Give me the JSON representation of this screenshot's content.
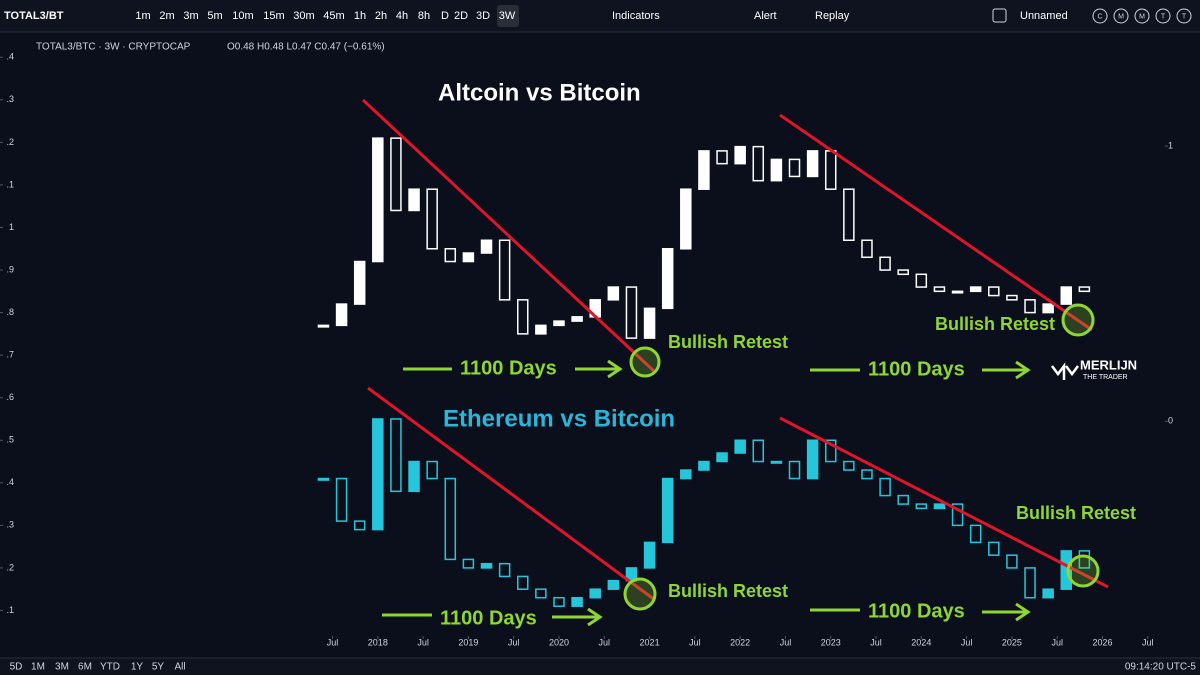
{
  "toolbar": {
    "symbol": "TOTAL3/BT",
    "intervals": [
      "1m",
      "2m",
      "3m",
      "5m",
      "10m",
      "15m",
      "30m",
      "45m",
      "1h",
      "2h",
      "4h",
      "8h",
      "D",
      "2D",
      "3D",
      "3W"
    ],
    "indicators": "Indicators",
    "alert": "Alert",
    "replay": "Replay",
    "layout": "Unnamed",
    "badges": [
      "C",
      "M",
      "M",
      "T",
      "T"
    ]
  },
  "legend": {
    "symbol": "TOTAL3/BTC · 3W · CRYPTOCAP",
    "ohlc": "O0.48 H0.48 L0.47 C0.47 (−0.61%)"
  },
  "watermark": {
    "name": "MERLIJN",
    "tagline": "THE TRADER"
  },
  "footer": {
    "ranges": [
      "5D",
      "1M",
      "3M",
      "6M",
      "YTD",
      "1Y",
      "5Y",
      "All"
    ],
    "time": "09:14:20 UTC-5"
  },
  "chart_data": {
    "type": "candlestick",
    "x": [
      2017.4,
      2017.6,
      2017.8,
      2018.0,
      2018.2,
      2018.4,
      2018.6,
      2018.8,
      2019.0,
      2019.2,
      2019.4,
      2019.6,
      2019.8,
      2020.0,
      2020.2,
      2020.4,
      2020.6,
      2020.8,
      2021.0,
      2021.2,
      2021.4,
      2021.6,
      2021.8,
      2022.0,
      2022.2,
      2022.4,
      2022.6,
      2022.8,
      2023.0,
      2023.2,
      2023.4,
      2023.6,
      2023.8,
      2024.0,
      2024.2,
      2024.4,
      2024.6,
      2024.8,
      2025.0,
      2025.2,
      2025.4,
      2025.6,
      2025.8
    ],
    "xlim": [
      2014.05,
      2026.69
    ],
    "xticks": [
      {
        "value": 2017.5,
        "label": "Jul"
      },
      2018,
      {
        "value": 2018.5,
        "label": "Jul"
      },
      2019,
      {
        "value": 2019.5,
        "label": "Jul"
      },
      2020,
      {
        "value": 2020.5,
        "label": "Jul"
      },
      2021,
      {
        "value": 2021.5,
        "label": "Jul"
      },
      2022,
      {
        "value": 2022.5,
        "label": "Jul"
      },
      2023,
      {
        "value": 2023.5,
        "label": "Jul"
      },
      2024,
      {
        "value": 2024.5,
        "label": "Jul"
      },
      2025,
      {
        "value": 2025.5,
        "label": "Jul"
      },
      2026,
      {
        "value": 2026.5,
        "label": "Jul"
      }
    ],
    "ylim": [
      0.04,
      1.45
    ],
    "yticks": [
      {
        "value": 1.4,
        "label": ".4"
      },
      {
        "value": 1.3,
        "label": ".3"
      },
      {
        "value": 1.2,
        "label": ".2"
      },
      {
        "value": 1.1,
        "label": ".1"
      },
      1,
      {
        "value": 0.9,
        "label": ".9"
      },
      {
        "value": 0.8,
        "label": ".8"
      },
      {
        "value": 0.7,
        "label": ".7"
      },
      {
        "value": 0.6,
        "label": ".6"
      },
      {
        "value": 0.5,
        "label": ".5"
      },
      {
        "value": 0.4,
        "label": ".4"
      },
      {
        "value": 0.3,
        "label": ".3"
      },
      {
        "value": 0.2,
        "label": ".2"
      },
      {
        "value": 0.1,
        "label": ".1"
      }
    ],
    "y2lim": [
      -0.78,
      1.4
    ],
    "y2ticks": [
      1,
      0
    ],
    "series": [
      {
        "color": "#ffffff",
        "values": [
          0.77,
          0.82,
          0.92,
          1.21,
          1.04,
          1.09,
          0.95,
          0.92,
          0.94,
          0.97,
          0.83,
          0.75,
          0.77,
          0.78,
          0.79,
          0.83,
          0.86,
          0.74,
          0.81,
          0.95,
          1.09,
          1.18,
          1.15,
          1.19,
          1.11,
          1.16,
          1.12,
          1.18,
          1.09,
          0.97,
          0.93,
          0.9,
          0.89,
          0.86,
          0.85,
          0.85,
          0.86,
          0.84,
          0.83,
          0.8,
          0.82,
          0.86,
          0.85
        ]
      },
      {
        "color": "#26c6da",
        "values": [
          0.41,
          0.31,
          0.29,
          0.55,
          0.38,
          0.45,
          0.41,
          0.22,
          0.2,
          0.21,
          0.18,
          0.15,
          0.13,
          0.11,
          0.13,
          0.15,
          0.17,
          0.2,
          0.26,
          0.41,
          0.43,
          0.45,
          0.47,
          0.5,
          0.45,
          0.45,
          0.41,
          0.5,
          0.45,
          0.43,
          0.41,
          0.37,
          0.35,
          0.34,
          0.35,
          0.3,
          0.26,
          0.23,
          0.2,
          0.13,
          0.15,
          0.24,
          0.2
        ]
      }
    ],
    "annotations": [
      "Altcoin vs Bitcoin",
      "Ethereum vs Bitcoin",
      "Bullish Retest",
      "Bullish Retest",
      "Bullish Retest",
      "Bullish Retest",
      "1100 Days",
      "1100 Days",
      "1100 Days",
      "1100 Days"
    ]
  }
}
